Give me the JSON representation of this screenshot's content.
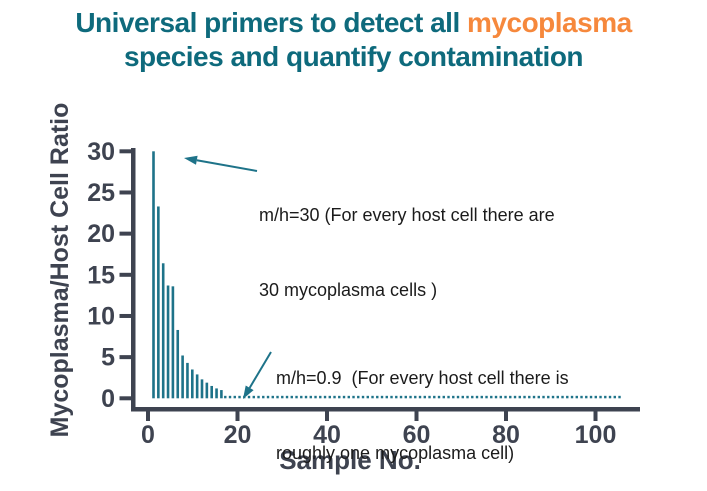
{
  "title": {
    "line1_prefix": "Universal primers to detect all ",
    "line1_highlight": "mycoplasma",
    "line2": "species and quantify contamination",
    "title_color": "#0e6a7c",
    "highlight_color": "#f6883c"
  },
  "chart_data": {
    "type": "bar",
    "title": "",
    "xlabel": "Sample No.",
    "ylabel": "Mycoplasma/Host Cell Ratio",
    "xlim": [
      0,
      110
    ],
    "ylim": [
      0,
      30
    ],
    "x_ticks": [
      0,
      20,
      40,
      60,
      80,
      100
    ],
    "y_ticks": [
      0,
      5,
      10,
      15,
      20,
      25,
      30
    ],
    "grid": false,
    "legend": "none",
    "samples": [
      1,
      2,
      3,
      4,
      5,
      6,
      7,
      8,
      9,
      10,
      11,
      12,
      13,
      14,
      15
    ],
    "values": [
      30,
      23.3,
      16.4,
      13.7,
      13.6,
      8.3,
      5.2,
      4.3,
      3.5,
      2.9,
      2.3,
      1.9,
      1.5,
      1.2,
      1.0
    ],
    "tail": {
      "from_sample": 17,
      "to_sample": 106,
      "value": 0.3,
      "style": "dotted"
    },
    "bar_color": "#1e7389",
    "axis_color": "#3e4350",
    "arrow_color": "#1e7389"
  },
  "annotations": [
    {
      "line1": "m/h=30 (For every host cell there are",
      "line2": "30 mycoplasma cells )"
    },
    {
      "line1": "m/h=0.9  (For every host cell there is",
      "line2": "roughly one mycoplasma cell)"
    }
  ]
}
